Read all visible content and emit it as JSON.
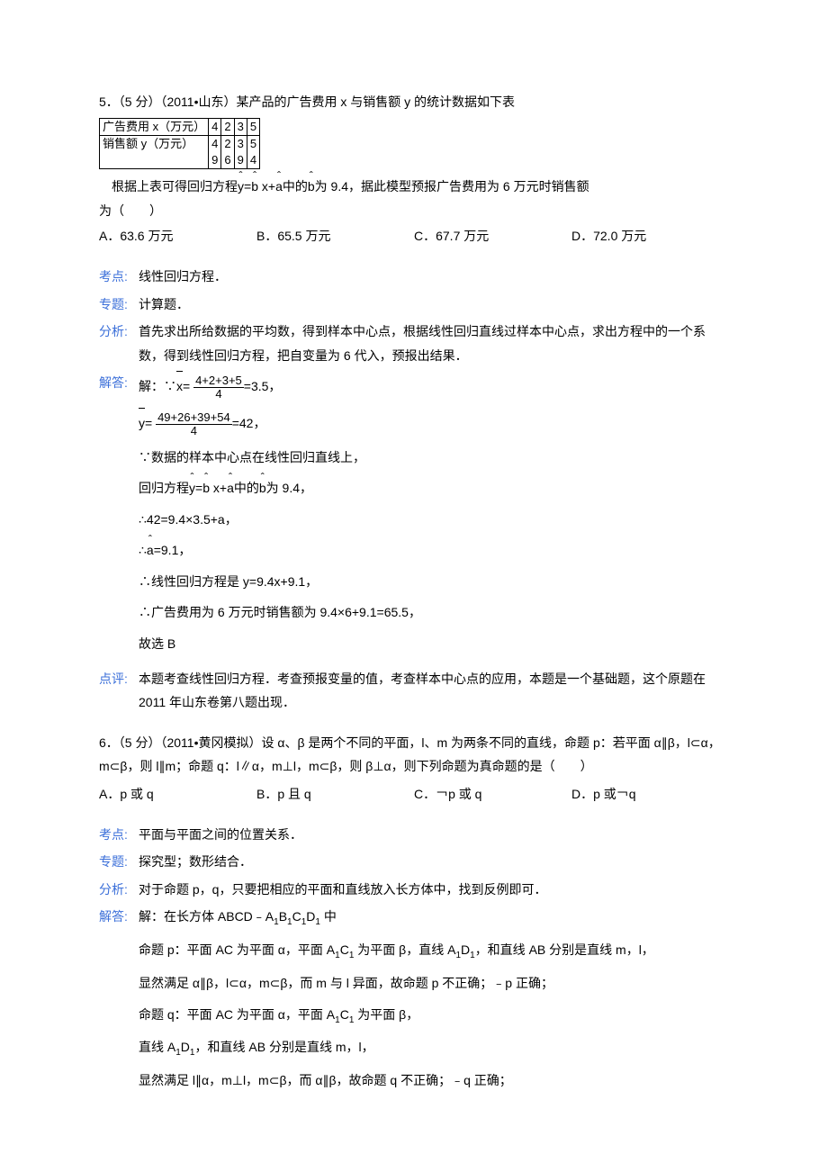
{
  "q5": {
    "stem": "5．（5 分）（2011•山东）某产品的广告费用 x 与销售额 y 的统计数据如下表",
    "table": {
      "r1c1": "广告费用 x（万元）",
      "r1c2": "4",
      "r1c3": "2",
      "r1c4": "3",
      "r1c5": "5",
      "r2c1": "销售额 y（万元）",
      "r2c2a": "4",
      "r2c2b": "9",
      "r2c3a": "2",
      "r2c3b": "6",
      "r2c4a": "3",
      "r2c4b": "9",
      "r2c5a": "5",
      "r2c5b": "4"
    },
    "stem2a": "　根据上表可得回归方程",
    "stem2eq": "y=b x+a",
    "stem2b": "中的",
    "stem2c": "为 9.4，据此模型预报广告费用为 6 万元时销售额",
    "stem3": "为（　　）",
    "optA": "A．63.6 万元",
    "optB": "B．65.5 万元",
    "optC": "C．67.7 万元",
    "optD": "D．72.0 万元",
    "kaodian_lab": "考点:",
    "kaodian": "线性回归方程．",
    "zhuanti_lab": "专题:",
    "zhuanti": "计算题．",
    "fenxi_lab": "分析:",
    "fenxi": "首先求出所给数据的平均数，得到样本中心点，根据线性回归直线过样本中心点，求出方程中的一个系数，得到线性回归方程，把自变量为 6 代入，预报出结果．",
    "jieda_lab": "解答:",
    "jieda_pre": "解：∵",
    "xnum": "4+2+3+5",
    "xden": "4",
    "xval": "=3.5，",
    "ynum": "49+26+39+54",
    "yden": "4",
    "yval": "=42，",
    "s1": "∵数据的样本中心点在线性回归直线上，",
    "s2a": "回归方程",
    "s2eq": "y=b x+a",
    "s2b": "中的",
    "s2c": "为 9.4，",
    "s3": "∴42=9.4×3.5+a，",
    "s4a": "∴",
    "s4b": "=9.1，",
    "s5": "∴线性回归方程是 y=9.4x+9.1，",
    "s6": "∴广告费用为 6 万元时销售额为 9.4×6+9.1=65.5，",
    "s7": "故选 B",
    "dianping_lab": "点评:",
    "dianping": "本题考查线性回归方程．考查预报变量的值，考查样本中心点的应用，本题是一个基础题，这个原题在 2011 年山东卷第八题出现．"
  },
  "q6": {
    "stem": "6．（5 分）（2011•黄冈模拟）设 α、β 是两个不同的平面，l、m 为两条不同的直线，命题 p：若平面 α∥β，l⊂α，m⊂β，则 l∥m；命题 q：l∥α，m⊥l，m⊂β，则 β⊥α，则下列命题为真命题的是（　　）",
    "optA": "A．p 或 q",
    "optB": "B．p 且 q",
    "optC": "C．￢p 或 q",
    "optD": "D．p 或￢q",
    "kaodian_lab": "考点:",
    "kaodian": "平面与平面之间的位置关系．",
    "zhuanti_lab": "专题:",
    "zhuanti": "探究型；数形结合．",
    "fenxi_lab": "分析:",
    "fenxi": "对于命题 p，q，只要把相应的平面和直线放入长方体中，找到反例即可．",
    "jieda_lab": "解答:",
    "s0a": "解：在长方体 ABCD﹣A",
    "s0b": "B",
    "s0c": "C",
    "s0d": "D",
    "s0e": " 中",
    "s1a": "命题 p：平面 AC 为平面 α，平面 A",
    "s1b": "C",
    "s1c": " 为平面 β，直线 A",
    "s1d": "D",
    "s1e": "，和直线 AB 分别是直线 m，l，",
    "s2": "显然满足 α∥β，l⊂α，m⊂β，而 m 与 l 异面，故命题 p 不正确；﹣p 正确；",
    "s3a": "命题 q：平面 AC 为平面 α，平面 A",
    "s3b": "C",
    "s3c": " 为平面 β，",
    "s4a": "直线 A",
    "s4b": "D",
    "s4c": "，和直线 AB 分别是直线 m，l，",
    "s5": "显然满足 l∥α，m⊥l，m⊂β，而 α∥β，故命题 q 不正确；﹣q 正确；"
  }
}
